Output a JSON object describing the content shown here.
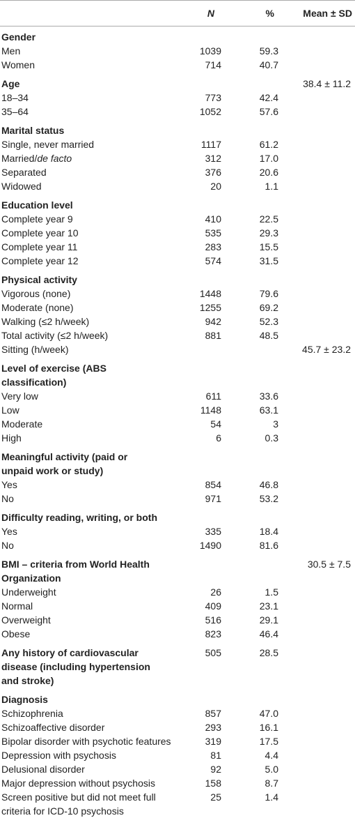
{
  "table": {
    "header": [
      "N",
      "%",
      "Mean ± SD"
    ],
    "sections": [
      {
        "title": "Gender",
        "rows": [
          {
            "label": "Men",
            "n": "1039",
            "pct": "59.3"
          },
          {
            "label": "Women",
            "n": "714",
            "pct": "40.7"
          }
        ]
      },
      {
        "title": "Age",
        "mean": "38.4 ± 11.2",
        "rows": [
          {
            "label": "18–34",
            "n": "773",
            "pct": "42.4"
          },
          {
            "label": "35–64",
            "n": "1052",
            "pct": "57.6"
          }
        ]
      },
      {
        "title": "Marital status",
        "rows": [
          {
            "label": "Single, never married",
            "n": "1117",
            "pct": "61.2"
          },
          {
            "label": "Married/",
            "label_em": "de facto",
            "n": "312",
            "pct": "17.0"
          },
          {
            "label": "Separated",
            "n": "376",
            "pct": "20.6"
          },
          {
            "label": "Widowed",
            "n": "20",
            "pct": "1.1"
          }
        ]
      },
      {
        "title": "Education level",
        "rows": [
          {
            "label": "Complete year 9",
            "n": "410",
            "pct": "22.5"
          },
          {
            "label": "Complete year 10",
            "n": "535",
            "pct": "29.3"
          },
          {
            "label": "Complete year 11",
            "n": "283",
            "pct": "15.5"
          },
          {
            "label": "Complete year 12",
            "n": "574",
            "pct": "31.5"
          }
        ]
      },
      {
        "title": "Physical activity",
        "rows": [
          {
            "label": "Vigorous (none)",
            "n": "1448",
            "pct": "79.6"
          },
          {
            "label": "Moderate (none)",
            "n": "1255",
            "pct": "69.2"
          },
          {
            "label": "Walking (≤2 h/week)",
            "n": "942",
            "pct": "52.3"
          },
          {
            "label": "Total activity (≤2 h/week)",
            "n": "881",
            "pct": "48.5"
          },
          {
            "label": "Sitting (h/week)",
            "mean": "45.7 ± 23.2"
          }
        ]
      },
      {
        "title": "Level of exercise (ABS classification)",
        "rows": [
          {
            "label": "Very low",
            "n": "611",
            "pct": "33.6"
          },
          {
            "label": "Low",
            "n": "1148",
            "pct": "63.1"
          },
          {
            "label": "Moderate",
            "n": "54",
            "pct": "3"
          },
          {
            "label": "High",
            "n": "6",
            "pct": "0.3"
          }
        ]
      },
      {
        "title": "Meaningful activity (paid or unpaid work or study)",
        "rows": [
          {
            "label": "Yes",
            "n": "854",
            "pct": "46.8"
          },
          {
            "label": "No",
            "n": "971",
            "pct": "53.2"
          }
        ]
      },
      {
        "title": "Difficulty reading, writing, or both",
        "rows": [
          {
            "label": "Yes",
            "n": "335",
            "pct": "18.4"
          },
          {
            "label": "No",
            "n": "1490",
            "pct": "81.6"
          }
        ]
      },
      {
        "title": "BMI – criteria from World Health Organization",
        "mean": "30.5 ± 7.5",
        "rows": [
          {
            "label": "Underweight",
            "n": "26",
            "pct": "1.5"
          },
          {
            "label": "Normal",
            "n": "409",
            "pct": "23.1"
          },
          {
            "label": "Overweight",
            "n": "516",
            "pct": "29.1"
          },
          {
            "label": "Obese",
            "n": "823",
            "pct": "46.4"
          }
        ]
      },
      {
        "title": "Any history of cardiovascular disease (including hypertension and stroke)",
        "n": "505",
        "pct": "28.5",
        "rows": []
      },
      {
        "title": "Diagnosis",
        "rows": [
          {
            "label": "Schizophrenia",
            "n": "857",
            "pct": "47.0"
          },
          {
            "label": "Schizoaffective disorder",
            "n": "293",
            "pct": "16.1"
          },
          {
            "label": "Bipolar disorder with psychotic features",
            "n": "319",
            "pct": "17.5"
          },
          {
            "label": "Depression with psychosis",
            "n": "81",
            "pct": "4.4"
          },
          {
            "label": "Delusional disorder",
            "n": "92",
            "pct": "5.0"
          },
          {
            "label": "Major depression without psychosis",
            "n": "158",
            "pct": "8.7"
          },
          {
            "label": "Screen positive but did not meet full criteria for ICD-10 psychosis",
            "n": "25",
            "pct": "1.4"
          }
        ]
      }
    ]
  }
}
